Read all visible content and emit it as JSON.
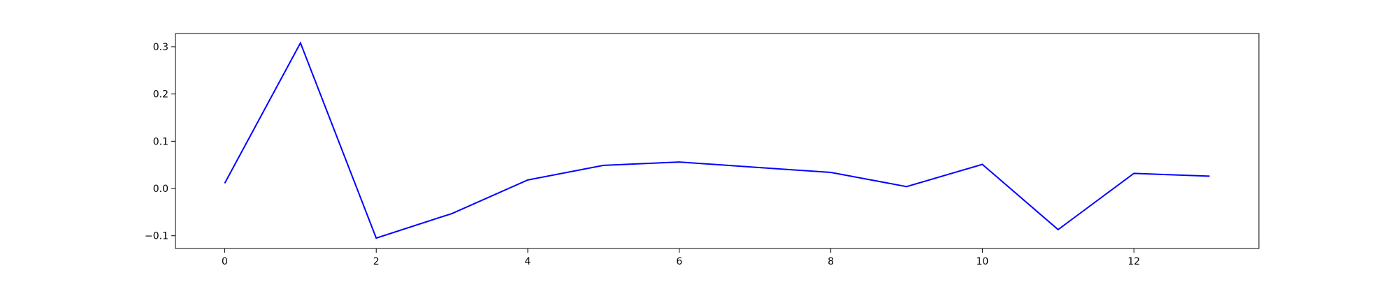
{
  "chart_data": {
    "type": "line",
    "title": "",
    "xlabel": "",
    "ylabel": "",
    "xlim": [
      -0.65,
      13.65
    ],
    "ylim": [
      -0.127,
      0.328
    ],
    "x_ticks": [
      0,
      2,
      4,
      6,
      8,
      10,
      12
    ],
    "y_ticks": [
      -0.1,
      0.0,
      0.1,
      0.2,
      0.3
    ],
    "x_tick_labels": [
      "0",
      "2",
      "4",
      "6",
      "8",
      "10",
      "12"
    ],
    "y_tick_labels": [
      "−0.1",
      "0.0",
      "0.1",
      "0.2",
      "0.3"
    ],
    "grid": false,
    "legend": "none",
    "series": [
      {
        "color": "#0000ff",
        "x": [
          0,
          1,
          2,
          3,
          4,
          5,
          6,
          7,
          8,
          9,
          10,
          11,
          12,
          13
        ],
        "values": [
          0.011,
          0.308,
          -0.105,
          -0.053,
          0.018,
          0.049,
          0.056,
          0.045,
          0.034,
          0.004,
          0.051,
          -0.087,
          0.032,
          0.026
        ]
      }
    ]
  }
}
